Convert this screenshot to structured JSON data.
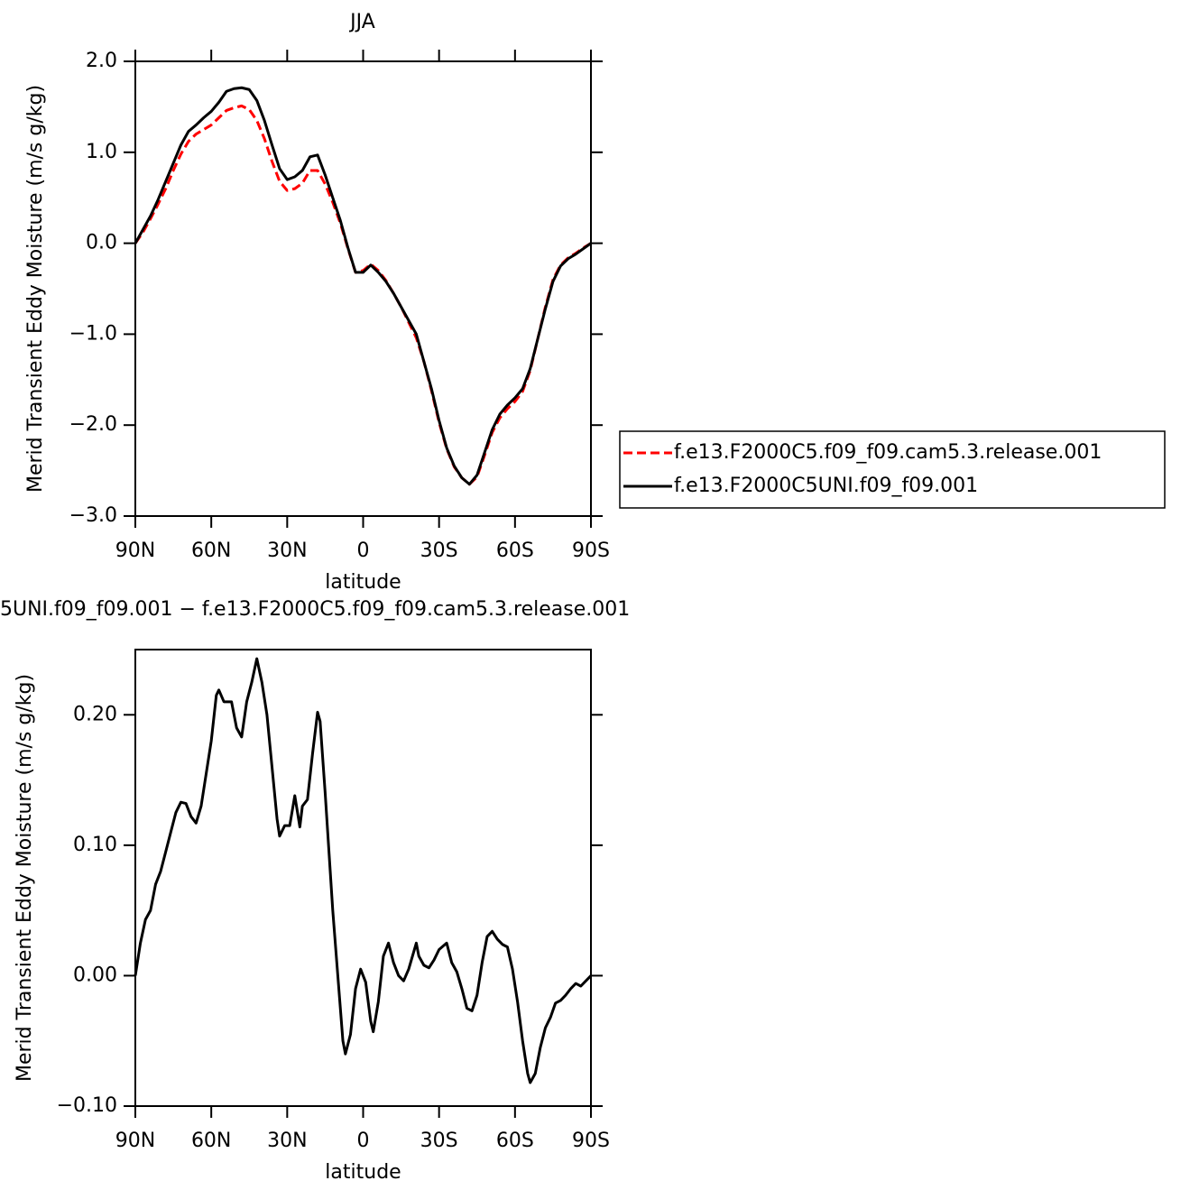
{
  "chart_data": [
    {
      "type": "line",
      "title": "JJA",
      "xlabel": "latitude",
      "ylabel": "Merid Transient Eddy Moisture (m/s g/kg)",
      "x": [
        90,
        87,
        84,
        81,
        78,
        75,
        72,
        69,
        66,
        63,
        60,
        57,
        54,
        51,
        48,
        45,
        42,
        39,
        36,
        33,
        30,
        27,
        24,
        21,
        18,
        15,
        12,
        9,
        6,
        3,
        0,
        -3,
        -6,
        -9,
        -12,
        -15,
        -18,
        -21,
        -24,
        -27,
        -30,
        -33,
        -36,
        -39,
        -42,
        -45,
        -48,
        -51,
        -54,
        -57,
        -60,
        -63,
        -66,
        -69,
        -72,
        -75,
        -78,
        -81,
        -84,
        -87,
        -90
      ],
      "series": [
        {
          "name": "f.e13.F2000C5.f09_f09.cam5.3.release.001",
          "color": "#ff0000",
          "linestyle": "dashed",
          "values": [
            0,
            0.12,
            0.27,
            0.43,
            0.6,
            0.8,
            0.98,
            1.12,
            1.2,
            1.25,
            1.3,
            1.38,
            1.46,
            1.49,
            1.51,
            1.47,
            1.35,
            1.15,
            0.9,
            0.68,
            0.58,
            0.6,
            0.66,
            0.8,
            0.8,
            0.65,
            0.45,
            0.22,
            -0.06,
            -0.32,
            -0.3,
            -0.23,
            -0.3,
            -0.41,
            -0.55,
            -0.7,
            -0.87,
            -1.04,
            -1.3,
            -1.62,
            -1.97,
            -2.26,
            -2.46,
            -2.58,
            -2.65,
            -2.57,
            -2.33,
            -2.08,
            -1.92,
            -1.82,
            -1.74,
            -1.63,
            -1.4,
            -1.05,
            -0.7,
            -0.4,
            -0.24,
            -0.16,
            -0.11,
            -0.05,
            0
          ]
        },
        {
          "name": "f.e13.F2000C5UNI.f09_f09.001",
          "color": "#000000",
          "linestyle": "solid",
          "values": [
            0,
            0.15,
            0.3,
            0.48,
            0.68,
            0.88,
            1.08,
            1.23,
            1.3,
            1.38,
            1.45,
            1.55,
            1.67,
            1.7,
            1.71,
            1.69,
            1.57,
            1.35,
            1.08,
            0.82,
            0.7,
            0.73,
            0.8,
            0.95,
            0.97,
            0.75,
            0.5,
            0.25,
            -0.05,
            -0.32,
            -0.32,
            -0.24,
            -0.32,
            -0.42,
            -0.55,
            -0.7,
            -0.85,
            -1.0,
            -1.3,
            -1.6,
            -1.95,
            -2.25,
            -2.45,
            -2.58,
            -2.65,
            -2.55,
            -2.3,
            -2.05,
            -1.88,
            -1.78,
            -1.7,
            -1.6,
            -1.38,
            -1.05,
            -0.72,
            -0.42,
            -0.25,
            -0.17,
            -0.12,
            -0.06,
            0
          ]
        }
      ],
      "xlim": [
        90,
        -90
      ],
      "xticks": [
        {
          "value": 90,
          "label": "90N"
        },
        {
          "value": 60,
          "label": "60N"
        },
        {
          "value": 30,
          "label": "30N"
        },
        0,
        {
          "value": -30,
          "label": "30S"
        },
        {
          "value": -60,
          "label": "60S"
        },
        {
          "value": -90,
          "label": "90S"
        }
      ],
      "ylim": [
        -3,
        2
      ],
      "yticks": [
        {
          "value": -3,
          "label": "−3.0"
        },
        {
          "value": -2,
          "label": "−2.0"
        },
        {
          "value": -1,
          "label": "−1.0"
        },
        {
          "value": 0,
          "label": "0.0"
        },
        {
          "value": 1,
          "label": "1.0"
        },
        {
          "value": 2,
          "label": "2.0"
        }
      ],
      "legend": "right"
    },
    {
      "type": "line",
      "title": "5UNI.f09_f09.001 − f.e13.F2000C5.f09_f09.cam5.3.release.001",
      "xlabel": "latitude",
      "ylabel": "Merid Transient Eddy Moisture (m/s g/kg)",
      "x": [
        90,
        88,
        86,
        84,
        82,
        80,
        78,
        76,
        74,
        72,
        70,
        68,
        66,
        64,
        62,
        60,
        58,
        57,
        55,
        52,
        50,
        48,
        46,
        44,
        42,
        40,
        38,
        36,
        34,
        33,
        31,
        29,
        27,
        25,
        24,
        22,
        20,
        18,
        17,
        15,
        12,
        10,
        8,
        7,
        5,
        3,
        1,
        -1,
        -3,
        -4,
        -6,
        -8,
        -10,
        -12,
        -14,
        -16,
        -18,
        -21,
        -22,
        -24,
        -26,
        -28,
        -30,
        -33,
        -35,
        -37,
        -39,
        -41,
        -43,
        -45,
        -47,
        -49,
        -51,
        -53,
        -55,
        -57,
        -59,
        -61,
        -63,
        -65,
        -66,
        -68,
        -70,
        -72,
        -74,
        -76,
        -78,
        -80,
        -82,
        -84,
        -86,
        -88,
        -90
      ],
      "color": "#000000",
      "values": [
        0,
        0.025,
        0.043,
        0.05,
        0.07,
        0.08,
        0.095,
        0.11,
        0.125,
        0.133,
        0.132,
        0.122,
        0.117,
        0.13,
        0.155,
        0.18,
        0.215,
        0.219,
        0.21,
        0.21,
        0.19,
        0.183,
        0.21,
        0.225,
        0.243,
        0.225,
        0.2,
        0.16,
        0.12,
        0.107,
        0.115,
        0.115,
        0.138,
        0.114,
        0.13,
        0.135,
        0.17,
        0.202,
        0.195,
        0.14,
        0.05,
        0.0,
        -0.05,
        -0.06,
        -0.045,
        -0.01,
        0.005,
        -0.005,
        -0.035,
        -0.043,
        -0.02,
        0.015,
        0.025,
        0.01,
        0.0,
        -0.004,
        0.005,
        0.025,
        0.015,
        0.008,
        0.006,
        0.012,
        0.02,
        0.025,
        0.01,
        0.003,
        -0.01,
        -0.025,
        -0.027,
        -0.015,
        0.01,
        0.03,
        0.034,
        0.028,
        0.024,
        0.022,
        0.005,
        -0.02,
        -0.05,
        -0.075,
        -0.082,
        -0.075,
        -0.055,
        -0.04,
        -0.032,
        -0.021,
        -0.019,
        -0.015,
        -0.01,
        -0.006,
        -0.008,
        -0.004,
        0
      ],
      "xlim": [
        90,
        -90
      ],
      "xticks": [
        {
          "value": 90,
          "label": "90N"
        },
        {
          "value": 60,
          "label": "60N"
        },
        {
          "value": 30,
          "label": "30N"
        },
        0,
        {
          "value": -30,
          "label": "30S"
        },
        {
          "value": -60,
          "label": "60S"
        },
        {
          "value": -90,
          "label": "90S"
        }
      ],
      "ylim": [
        -0.1,
        0.25
      ],
      "yticks": [
        {
          "value": -0.1,
          "label": "−0.10"
        },
        {
          "value": 0,
          "label": "0.00"
        },
        {
          "value": 0.1,
          "label": "0.10"
        },
        {
          "value": 0.2,
          "label": "0.20"
        }
      ]
    }
  ]
}
